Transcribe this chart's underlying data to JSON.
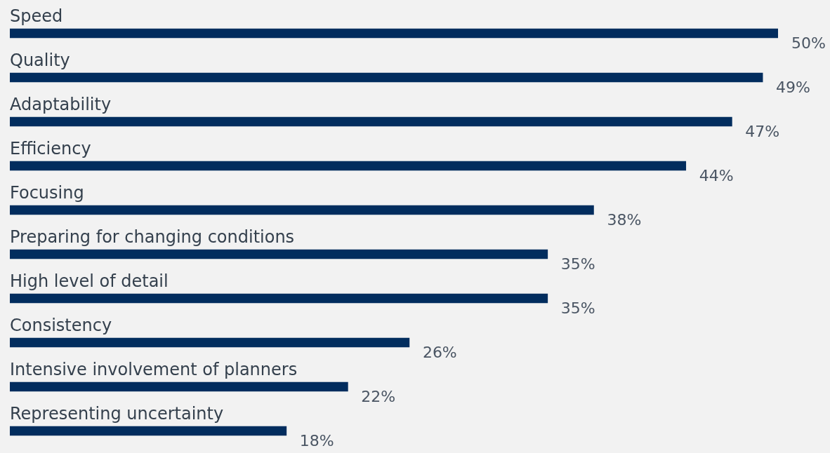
{
  "chart_data": {
    "type": "bar",
    "orientation": "horizontal",
    "categories": [
      "Speed",
      "Quality",
      "Adaptability",
      "Efficiency",
      "Focusing",
      "Preparing for changing conditions",
      "High level of detail",
      "Consistency",
      "Intensive involvement of planners",
      "Representing uncertainty"
    ],
    "values": [
      50,
      49,
      47,
      44,
      38,
      35,
      35,
      26,
      22,
      18
    ],
    "value_labels": [
      "50%",
      "49%",
      "47%",
      "44%",
      "38%",
      "35%",
      "35%",
      "26%",
      "22%",
      "18%"
    ],
    "color": "#022d5e",
    "xlim": [
      0,
      50
    ]
  }
}
